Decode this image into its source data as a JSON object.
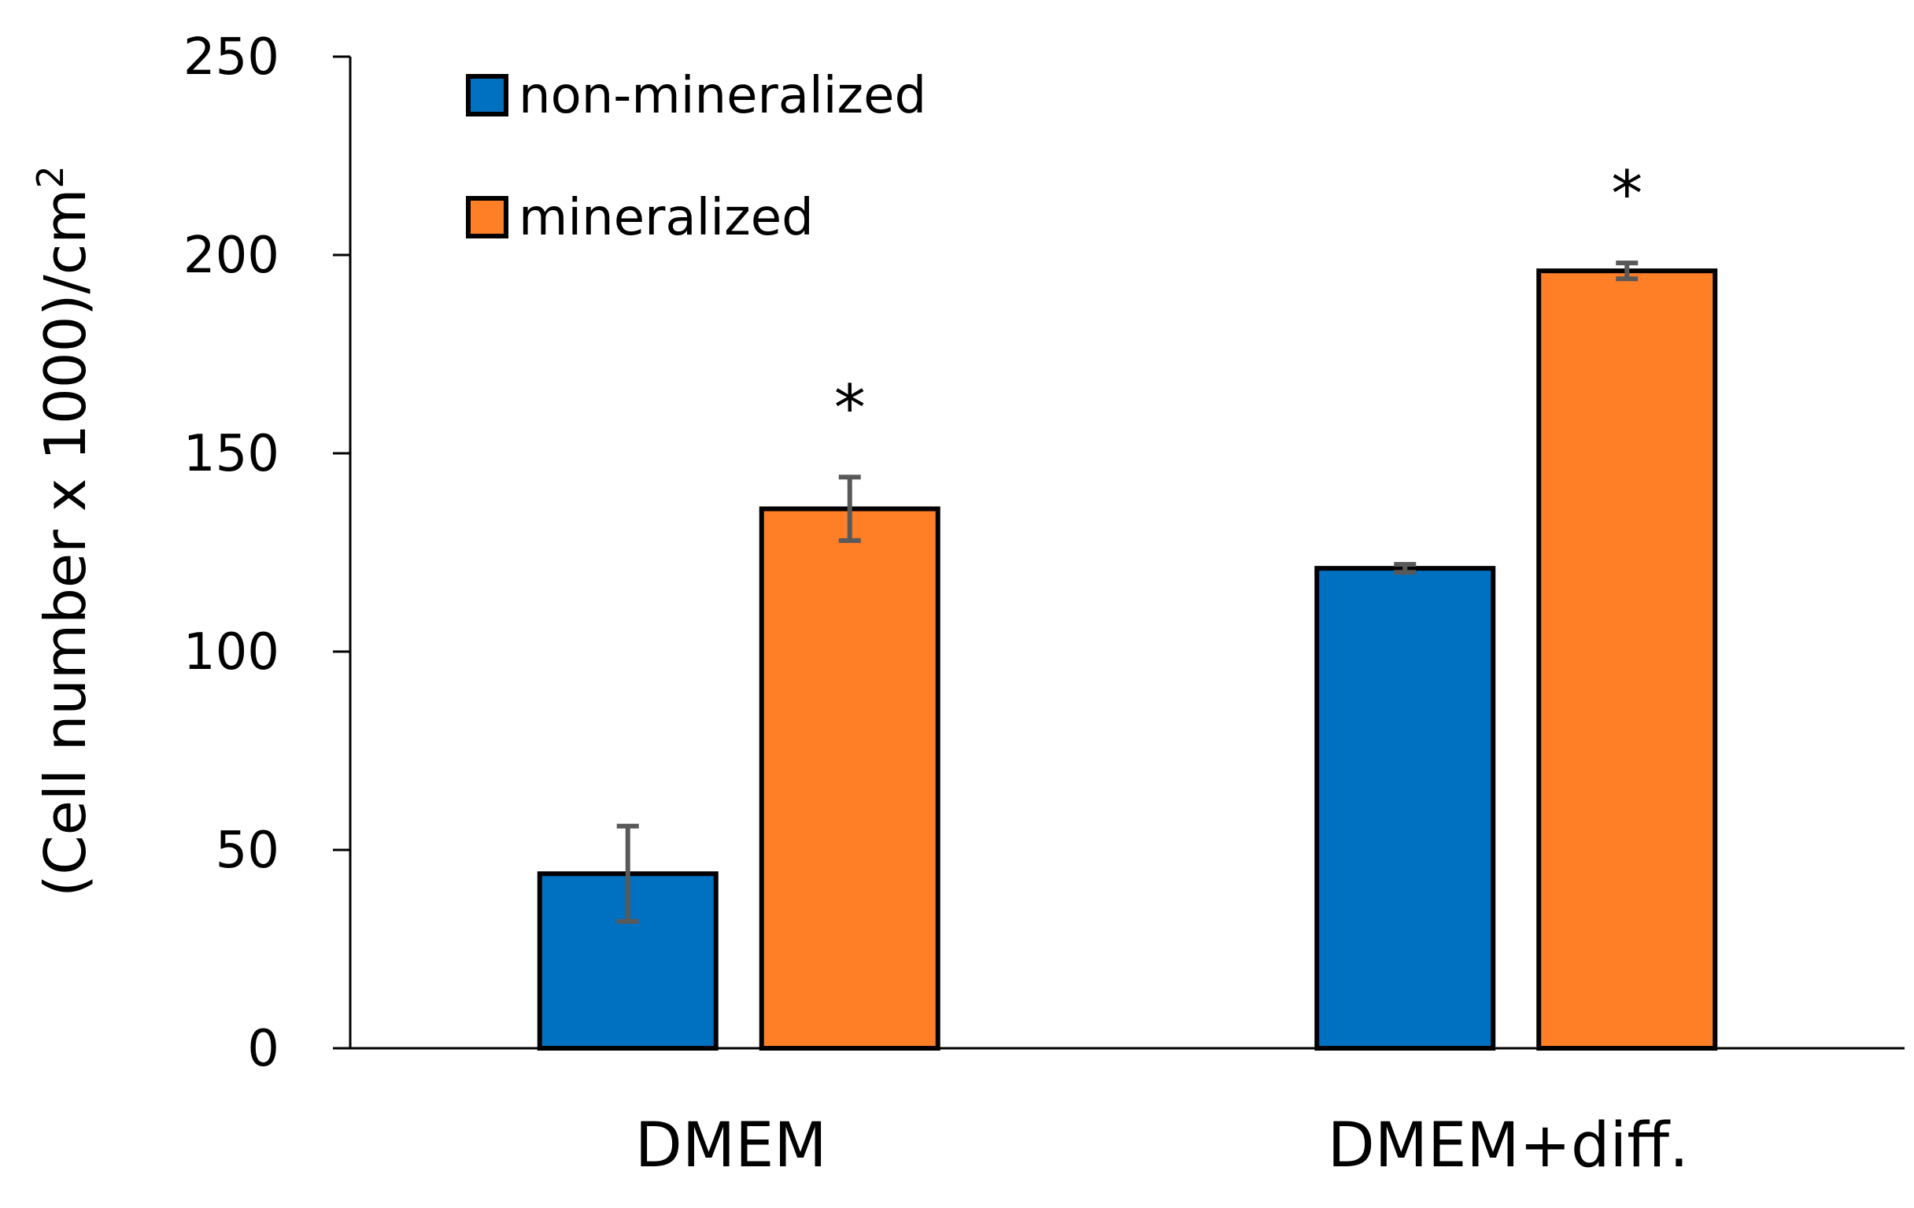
{
  "chart_data": {
    "type": "bar",
    "title": "",
    "xlabel": "",
    "ylabel": "(Cell  number x 1000)/cm",
    "ylabel_superscript": "2",
    "ylim": [
      0,
      250
    ],
    "yticks": [
      0,
      50,
      100,
      150,
      200,
      250
    ],
    "grid": false,
    "legend": "top-left",
    "categories": [
      "DMEM",
      "DMEM+diff."
    ],
    "series": [
      {
        "name": "non-mineralized",
        "color": "#0070C0",
        "values": [
          44,
          121
        ],
        "errors": [
          12,
          1
        ]
      },
      {
        "name": "mineralized",
        "color": "#FF7F27",
        "values": [
          136,
          196
        ],
        "errors": [
          8,
          2
        ]
      }
    ],
    "annotations": [
      {
        "category": "DMEM",
        "series": "mineralized",
        "text": "*"
      },
      {
        "category": "DMEM+diff.",
        "series": "mineralized",
        "text": "*"
      }
    ],
    "error_bar_color": "#595959"
  }
}
